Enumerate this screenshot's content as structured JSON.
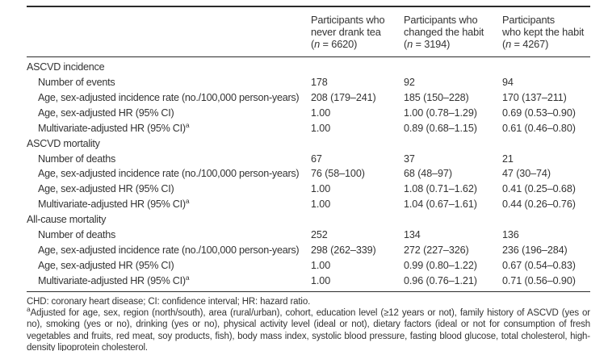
{
  "header": {
    "columns": [
      {
        "lines": [
          "Participants who",
          "never drank tea"
        ],
        "n": {
          "open": "(",
          "italic": "n",
          "rest": " = 6620)"
        }
      },
      {
        "lines": [
          "Participants who",
          "changed the habit"
        ],
        "n": {
          "open": "(",
          "italic": "n",
          "rest": " = 3194)"
        }
      },
      {
        "lines": [
          "Participants",
          "who kept the habit"
        ],
        "n": {
          "open": "(",
          "italic": "n",
          "rest": " = 4267)"
        }
      }
    ]
  },
  "sections": [
    {
      "title": "ASCVD incidence",
      "rows": [
        {
          "label": "Number of events",
          "sup": "",
          "values": [
            "178",
            "92",
            "94"
          ]
        },
        {
          "label": "Age, sex-adjusted incidence rate (no./100,000 person-years)",
          "sup": "",
          "values": [
            "208 (179–241)",
            "185 (150–228)",
            "170 (137–211)"
          ]
        },
        {
          "label": "Age, sex-adjusted HR (95% CI)",
          "sup": "",
          "values": [
            "1.00",
            "1.00 (0.78–1.29)",
            "0.69 (0.53–0.90)"
          ]
        },
        {
          "label": "Multivariate-adjusted HR (95% CI)",
          "sup": "a",
          "values": [
            "1.00",
            "0.89 (0.68–1.15)",
            "0.61 (0.46–0.80)"
          ]
        }
      ]
    },
    {
      "title": "ASCVD mortality",
      "rows": [
        {
          "label": "Number of deaths",
          "sup": "",
          "values": [
            "67",
            "37",
            "21"
          ]
        },
        {
          "label": "Age, sex-adjusted incidence rate (no./100,000 person-years)",
          "sup": "",
          "values": [
            "76 (58–100)",
            "68 (48–97)",
            "47 (30–74)"
          ]
        },
        {
          "label": "Age, sex-adjusted HR (95% CI)",
          "sup": "",
          "values": [
            "1.00",
            "1.08 (0.71–1.62)",
            "0.41 (0.25–0.68)"
          ]
        },
        {
          "label": "Multivariate-adjusted HR (95% CI)",
          "sup": "a",
          "values": [
            "1.00",
            "1.04 (0.67–1.61)",
            "0.44 (0.26–0.76)"
          ]
        }
      ]
    },
    {
      "title": "All-cause mortality",
      "rows": [
        {
          "label": "Number of deaths",
          "sup": "",
          "values": [
            "252",
            "134",
            "136"
          ]
        },
        {
          "label": "Age, sex-adjusted incidence rate (no./100,000 person-years)",
          "sup": "",
          "values": [
            "298 (262–339)",
            "272 (227–326)",
            "236 (196–284)"
          ]
        },
        {
          "label": "Age, sex-adjusted HR (95% CI)",
          "sup": "",
          "values": [
            "1.00",
            "0.99 (0.80–1.22)",
            "0.67 (0.54–0.83)"
          ]
        },
        {
          "label": "Multivariate-adjusted HR (95% CI)",
          "sup": "a",
          "values": [
            "1.00",
            "0.96 (0.76–1.21)",
            "0.71 (0.56–0.90)"
          ]
        }
      ]
    }
  ],
  "footnotes": {
    "abbr": "CHD: coronary heart disease; CI: confidence interval; HR: hazard ratio.",
    "adj_sup": "a",
    "adj_text": "Adjusted for age, sex, region (north/south), area (rural/urban), cohort, education level (≥12 years or not), family history of ASCVD (yes or no), smoking (yes or no), drinking (yes or no), physical activity level (ideal or not), dietary factors (ideal or not for consumption of fresh vegetables and fruits, red meat, soy products, fish), body mass index, systolic blood pressure, fasting blood glucose, total cholesterol, high-density lipoprotein cholesterol."
  }
}
